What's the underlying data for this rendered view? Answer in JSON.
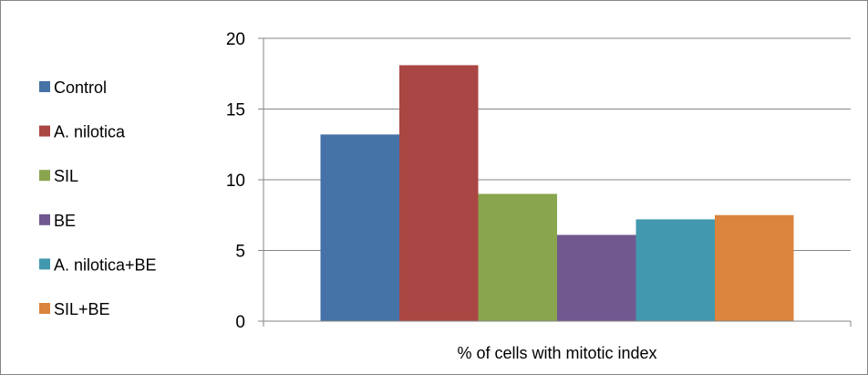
{
  "chart_data": {
    "type": "bar",
    "title": "",
    "xlabel": "",
    "ylabel": "",
    "categories": [
      "% of cells with mitotic index"
    ],
    "series": [
      {
        "name": "Control",
        "values": [
          13.2
        ],
        "color": "#4572A7"
      },
      {
        "name": "A. nilotica",
        "values": [
          18.1
        ],
        "color": "#AA4643"
      },
      {
        "name": "SIL",
        "values": [
          9.0
        ],
        "color": "#89A54E"
      },
      {
        "name": "BE",
        "values": [
          6.1
        ],
        "color": "#71588F"
      },
      {
        "name": "A. nilotica+BE",
        "values": [
          7.2
        ],
        "color": "#4198AF"
      },
      {
        "name": "SIL+BE",
        "values": [
          7.5
        ],
        "color": "#DB843D"
      }
    ],
    "ylim": [
      0,
      20
    ],
    "yticks": [
      0,
      5,
      10,
      15,
      20
    ],
    "grid": true,
    "legend_position": "left"
  }
}
